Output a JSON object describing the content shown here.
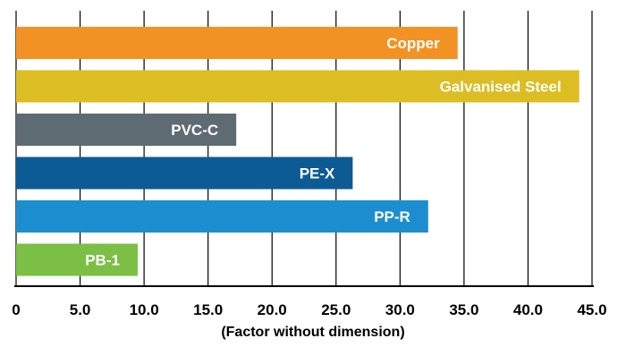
{
  "chart_data": {
    "type": "bar",
    "orientation": "horizontal",
    "categories": [
      "Copper",
      "Galvanised Steel",
      "PVC-C",
      "PE-X",
      "PP-R",
      "PB-1"
    ],
    "values": [
      34.5,
      44.0,
      17.2,
      26.3,
      32.2,
      9.5
    ],
    "colors": [
      "#f39224",
      "#dcbd24",
      "#5f6b73",
      "#0d5b94",
      "#1c8ecf",
      "#7bbf44"
    ],
    "xlim": [
      0,
      45
    ],
    "xticks": [
      0,
      5,
      10,
      15,
      20,
      25,
      30,
      35,
      40,
      45
    ],
    "xtick_labels": [
      "0",
      "5.0",
      "10.0",
      "15.0",
      "20.0",
      "25.0",
      "30.0",
      "35.0",
      "40.0",
      "45.0"
    ],
    "xlabel": "(Factor without dimension)",
    "title": "",
    "grid": "vertical",
    "legend": "none",
    "label_color": "#ffffff",
    "grid_color": "#000000"
  }
}
